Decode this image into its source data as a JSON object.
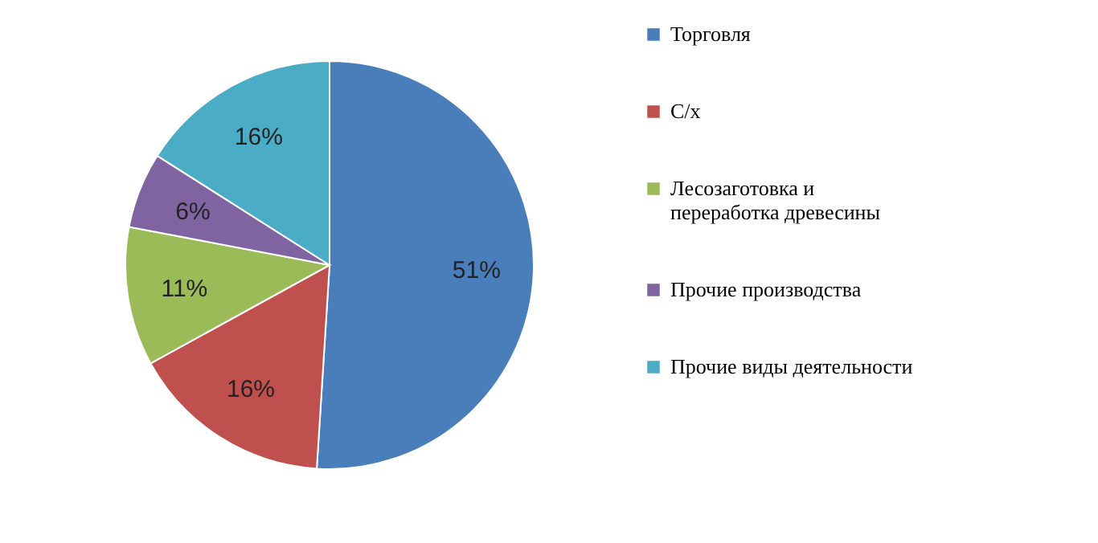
{
  "chart_data": {
    "type": "pie",
    "categories": [
      "Торговля",
      "С/х",
      "Лесозаготовка и переработка древесины",
      "Прочие производства",
      "Прочие виды деятельности"
    ],
    "values": [
      51,
      16,
      11,
      6,
      16
    ],
    "value_labels": [
      "51%",
      "16%",
      "11%",
      "6%",
      "16%"
    ],
    "colors": [
      "#4a7ebb",
      "#c0504d",
      "#9bbb59",
      "#8064a2",
      "#4bacc6"
    ],
    "legend": "right"
  }
}
